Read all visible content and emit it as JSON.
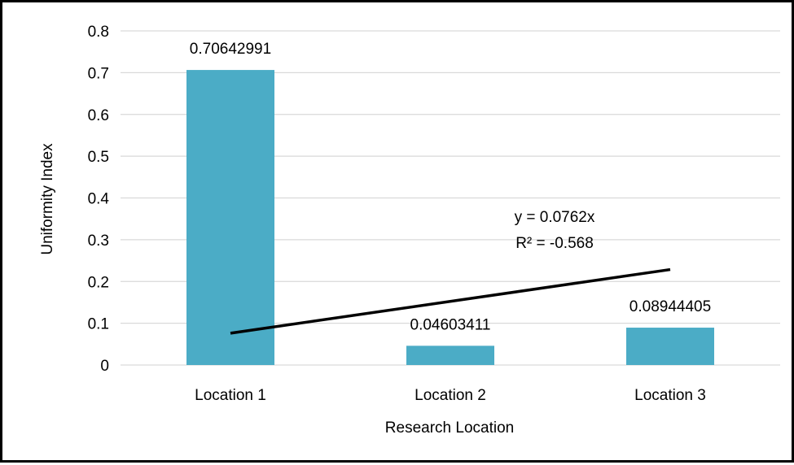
{
  "chart_data": {
    "type": "bar",
    "categories": [
      "Location 1",
      "Location 2",
      "Location 3"
    ],
    "values": [
      0.70642991,
      0.04603411,
      0.08944405
    ],
    "data_labels": [
      "0.70642991",
      "0.04603411",
      "0.08944405"
    ],
    "xlabel": "Research Location",
    "ylabel": "Uniformity Index",
    "ylim": [
      0,
      0.8
    ],
    "yticks": [
      "0",
      "0.1",
      "0.2",
      "0.3",
      "0.4",
      "0.5",
      "0.6",
      "0.7",
      "0.8"
    ],
    "grid": true,
    "bar_color": "#4BACC6",
    "trendline": {
      "type": "linear",
      "slope": 0.0762,
      "equation": "y = 0.0762x",
      "r_squared": "R² = -0.568",
      "color": "#000000"
    }
  }
}
